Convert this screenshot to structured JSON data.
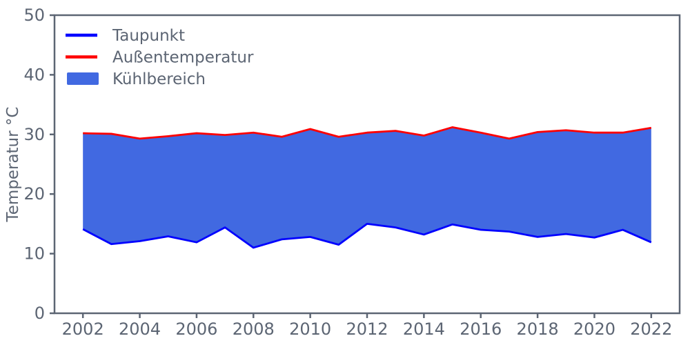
{
  "figure": {
    "background": "#ffffff",
    "axis_color": "#5c6573",
    "spine_width": 2.5,
    "line_width": 2.8
  },
  "legend": {
    "position": "upper-left",
    "items": [
      {
        "label": "Taupunkt",
        "swatch": "line",
        "color": "#0000ff"
      },
      {
        "label": "Außentemperatur",
        "swatch": "line",
        "color": "#ff0000"
      },
      {
        "label": "Kühlbereich",
        "swatch": "patch",
        "color": "#4169e1"
      }
    ]
  },
  "chart_data": {
    "type": "area",
    "ylabel": "Temperatur °C",
    "x": [
      2002,
      2003,
      2004,
      2005,
      2006,
      2007,
      2008,
      2009,
      2010,
      2011,
      2012,
      2013,
      2014,
      2015,
      2016,
      2017,
      2018,
      2019,
      2020,
      2021,
      2022
    ],
    "series": [
      {
        "name": "Taupunkt",
        "color": "#0000ff",
        "values": [
          14.1,
          11.6,
          12.1,
          12.9,
          11.9,
          14.4,
          11.0,
          12.4,
          12.8,
          11.5,
          15.0,
          14.4,
          13.2,
          14.9,
          14.0,
          13.7,
          12.8,
          13.3,
          12.7,
          14.0,
          11.9
        ]
      },
      {
        "name": "Außentemperatur",
        "color": "#ff0000",
        "values": [
          30.2,
          30.1,
          29.3,
          29.7,
          30.2,
          29.9,
          30.3,
          29.6,
          30.9,
          29.6,
          30.3,
          30.6,
          29.8,
          31.2,
          30.3,
          29.3,
          30.4,
          30.7,
          30.3,
          30.3,
          31.1
        ]
      }
    ],
    "fill_between": {
      "name": "Kühlbereich",
      "color": "#4169e1",
      "lower": "Taupunkt",
      "upper": "Außentemperatur"
    },
    "xlim": [
      2001,
      2023
    ],
    "ylim": [
      0,
      50
    ],
    "xticks": [
      2002,
      2004,
      2006,
      2008,
      2010,
      2012,
      2014,
      2016,
      2018,
      2020,
      2022
    ],
    "yticks": [
      0,
      10,
      20,
      30,
      40,
      50
    ],
    "grid": false,
    "legend_position": "upper-left"
  }
}
